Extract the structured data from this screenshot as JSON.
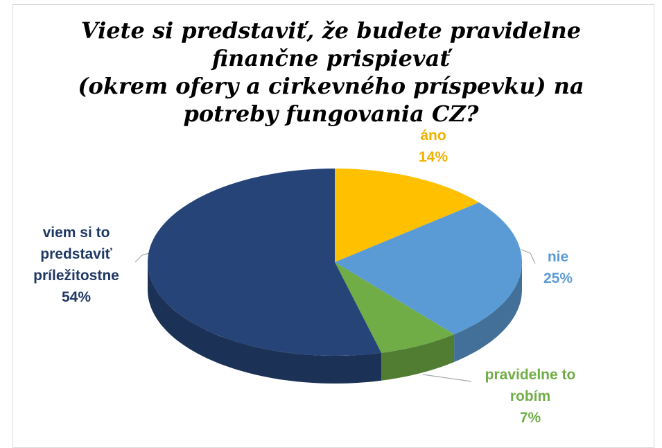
{
  "chart_data": {
    "type": "pie3d",
    "title": [
      "Viete si predstaviť, že budete pravidelne",
      "finančne prispievať",
      "(okrem ofery a cirkevného príspevku) na",
      "potreby fungovania CZ?"
    ],
    "categories": [
      "áno",
      "nie",
      "pravidelne to robím",
      "viem si to predstaviť príležitostne"
    ],
    "values": [
      14,
      25,
      7,
      54
    ],
    "value_labels": [
      "14%",
      "25%",
      "7%",
      "54%"
    ],
    "colors": [
      "#ffc000",
      "#5b9bd5",
      "#70ad47",
      "#264478"
    ]
  }
}
